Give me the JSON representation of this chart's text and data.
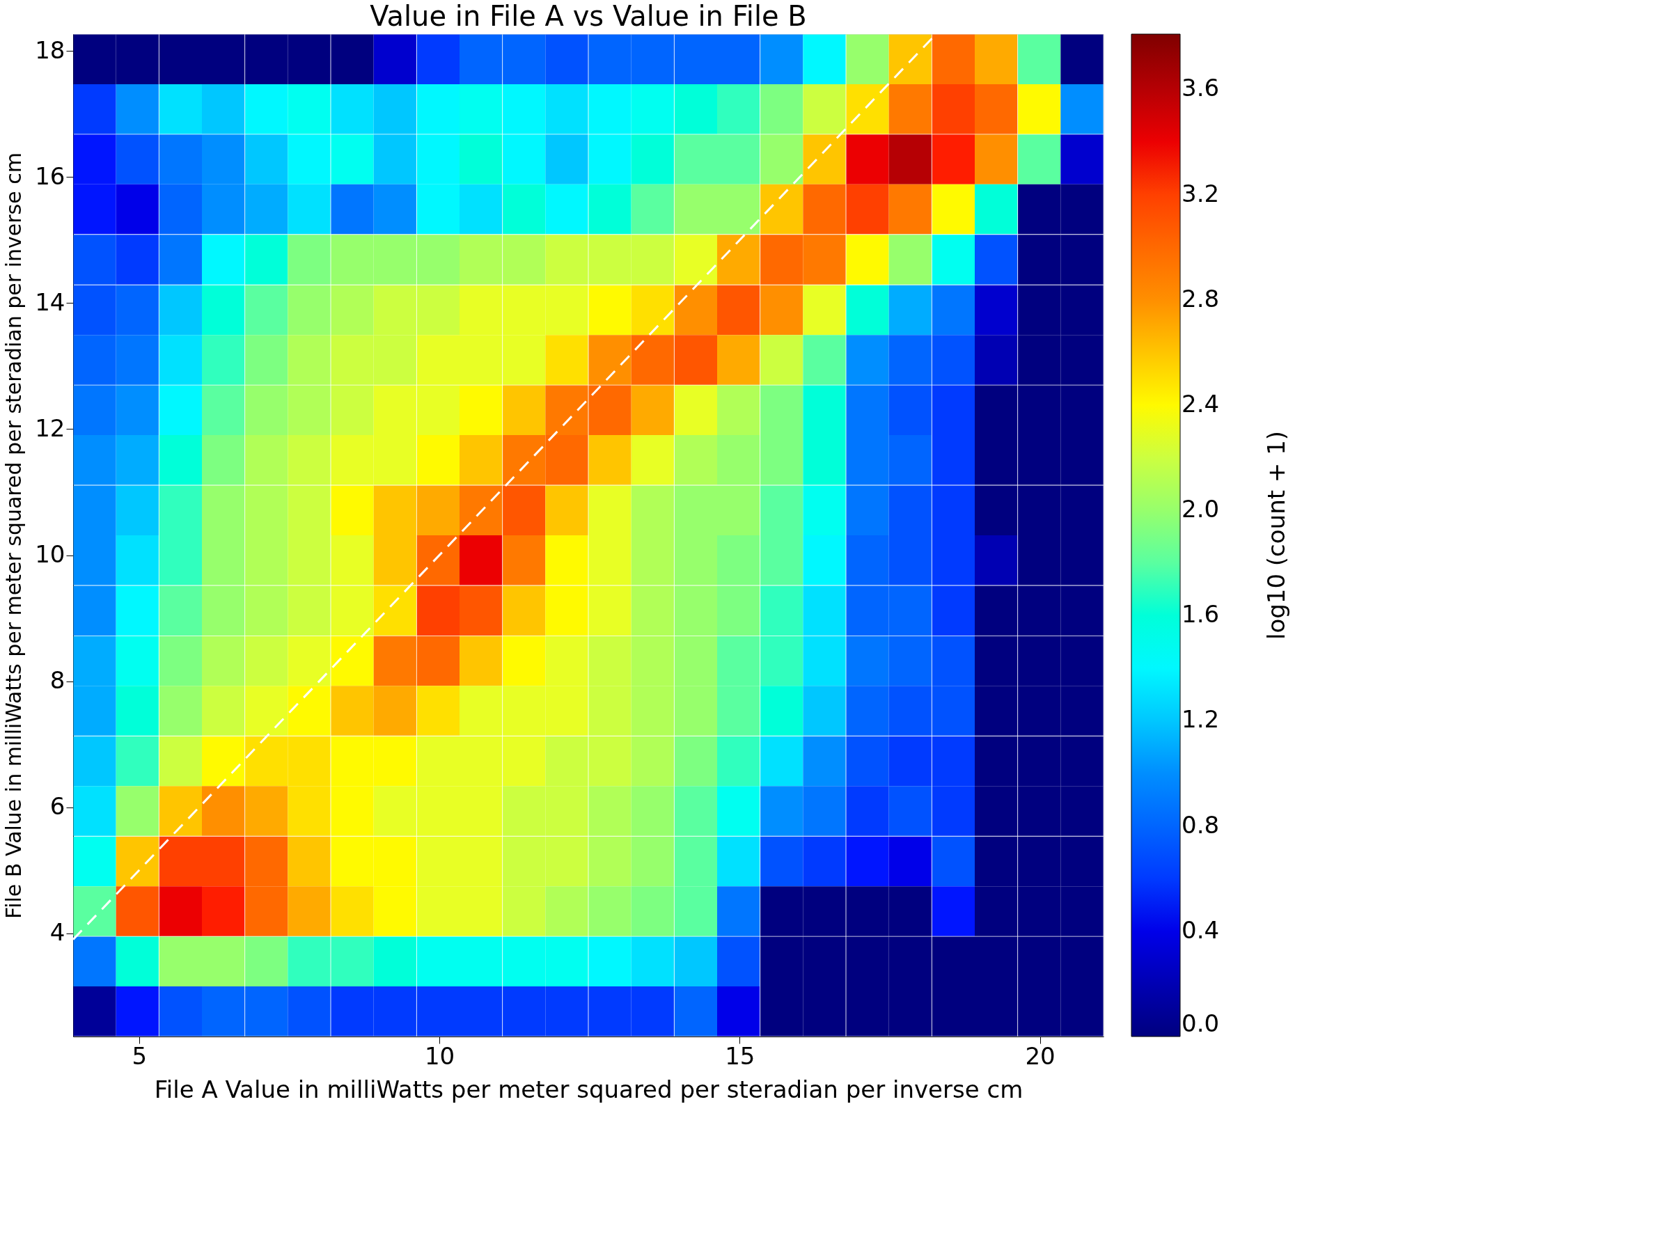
{
  "chart_data": {
    "type": "heatmap",
    "title": "Value in File A vs Value in File B",
    "xlabel": "File A Value in milliWatts per meter squared per steradian per inverse cm",
    "ylabel": "File B Value in milliWatts per meter squared per steradian per inverse cm",
    "clabel": "log10 (count + 1)",
    "xlim": [
      3.9,
      21.06
    ],
    "xticks": [
      5,
      10,
      15,
      20
    ],
    "ylim": [
      2.36,
      18.27
    ],
    "yticks": [
      4,
      6,
      8,
      10,
      12,
      14,
      16,
      18
    ],
    "clim": [
      0,
      3.81
    ],
    "cticks": [
      {
        "value": 0,
        "label": "0.0"
      },
      0.4,
      0.8,
      1.2,
      1.6,
      {
        "value": 2,
        "label": "2.0"
      },
      2.4,
      2.8,
      3.2,
      3.6
    ],
    "grid": false,
    "x": [
      4.26,
      4.97,
      5.69,
      6.4,
      7.12,
      7.83,
      8.55,
      9.26,
      9.98,
      10.69,
      11.41,
      12.12,
      12.84,
      13.55,
      14.27,
      14.98,
      15.7,
      16.41,
      17.13,
      17.84,
      18.56,
      19.27,
      19.99,
      20.7
    ],
    "y": [
      17.87,
      17.08,
      16.28,
      15.49,
      14.69,
      13.89,
      13.1,
      12.3,
      11.51,
      10.71,
      9.92,
      9.12,
      8.32,
      7.53,
      6.73,
      5.94,
      5.14,
      4.35,
      3.55,
      2.76
    ],
    "cells": [
      [
        0,
        0,
        0,
        0,
        0,
        0,
        0,
        0.3,
        0.6,
        0.8,
        0.8,
        0.7,
        0.8,
        0.8,
        0.8,
        0.8,
        1.0,
        1.4,
        2.0,
        2.6,
        3.0,
        2.7,
        1.8,
        0
      ],
      [
        0.6,
        1.0,
        1.3,
        1.2,
        1.4,
        1.5,
        1.3,
        1.2,
        1.4,
        1.5,
        1.4,
        1.3,
        1.4,
        1.5,
        1.6,
        1.7,
        1.9,
        2.2,
        2.5,
        2.9,
        3.2,
        3.0,
        2.4,
        1.0
      ],
      [
        0.5,
        0.7,
        0.9,
        1.0,
        1.2,
        1.4,
        1.5,
        1.2,
        1.4,
        1.6,
        1.4,
        1.2,
        1.4,
        1.6,
        1.8,
        1.8,
        2.0,
        2.6,
        3.4,
        3.6,
        3.3,
        2.8,
        1.8,
        0.3
      ],
      [
        0.5,
        0.4,
        0.8,
        1.0,
        1.1,
        1.3,
        0.9,
        1.0,
        1.4,
        1.3,
        1.6,
        1.4,
        1.6,
        1.8,
        2.0,
        2.0,
        2.6,
        3.0,
        3.2,
        2.9,
        2.4,
        1.6,
        0,
        0
      ],
      [
        0.7,
        0.6,
        0.9,
        1.4,
        1.6,
        1.9,
        2.0,
        2.0,
        2.0,
        2.1,
        2.1,
        2.2,
        2.2,
        2.2,
        2.3,
        2.7,
        3.0,
        2.9,
        2.4,
        2.0,
        1.5,
        0.7,
        0,
        0
      ],
      [
        0.7,
        0.8,
        1.2,
        1.6,
        1.8,
        2.0,
        2.1,
        2.2,
        2.2,
        2.3,
        2.3,
        2.3,
        2.4,
        2.5,
        2.8,
        3.1,
        2.8,
        2.3,
        1.6,
        1.1,
        0.9,
        0.3,
        0,
        0
      ],
      [
        0.8,
        0.9,
        1.3,
        1.7,
        1.9,
        2.1,
        2.2,
        2.2,
        2.3,
        2.3,
        2.3,
        2.5,
        2.8,
        3.0,
        3.1,
        2.7,
        2.2,
        1.8,
        1.0,
        0.8,
        0.7,
        0.2,
        0,
        0
      ],
      [
        0.9,
        1.0,
        1.4,
        1.8,
        2.0,
        2.1,
        2.2,
        2.3,
        2.3,
        2.4,
        2.6,
        2.9,
        3.0,
        2.7,
        2.3,
        2.1,
        1.9,
        1.6,
        0.9,
        0.7,
        0.6,
        0,
        0,
        0
      ],
      [
        1.0,
        1.1,
        1.6,
        1.9,
        2.1,
        2.2,
        2.3,
        2.3,
        2.4,
        2.6,
        2.9,
        3.0,
        2.6,
        2.3,
        2.1,
        2.0,
        1.9,
        1.6,
        0.9,
        0.8,
        0.6,
        0,
        0,
        0
      ],
      [
        1.0,
        1.2,
        1.7,
        2.0,
        2.1,
        2.2,
        2.4,
        2.6,
        2.7,
        2.9,
        3.1,
        2.6,
        2.3,
        2.1,
        2.0,
        2.0,
        1.8,
        1.5,
        0.9,
        0.7,
        0.6,
        0,
        0,
        0
      ],
      [
        1.0,
        1.3,
        1.7,
        2.0,
        2.1,
        2.2,
        2.3,
        2.6,
        3.0,
        3.4,
        2.9,
        2.4,
        2.3,
        2.1,
        2.0,
        1.9,
        1.8,
        1.4,
        0.8,
        0.7,
        0.6,
        0.2,
        0,
        0
      ],
      [
        1.0,
        1.4,
        1.8,
        2.0,
        2.1,
        2.2,
        2.3,
        2.5,
        3.2,
        3.1,
        2.6,
        2.4,
        2.3,
        2.1,
        2.0,
        1.9,
        1.7,
        1.3,
        0.8,
        0.8,
        0.6,
        0,
        0,
        0
      ],
      [
        1.1,
        1.5,
        1.9,
        2.1,
        2.2,
        2.3,
        2.4,
        2.9,
        3.0,
        2.6,
        2.4,
        2.3,
        2.2,
        2.1,
        2.0,
        1.8,
        1.7,
        1.3,
        0.9,
        0.8,
        0.7,
        0,
        0,
        0
      ],
      [
        1.1,
        1.6,
        2.0,
        2.2,
        2.3,
        2.4,
        2.6,
        2.7,
        2.5,
        2.3,
        2.3,
        2.3,
        2.2,
        2.1,
        2.0,
        1.8,
        1.6,
        1.2,
        0.8,
        0.7,
        0.7,
        0,
        0,
        0
      ],
      [
        1.2,
        1.7,
        2.2,
        2.4,
        2.5,
        2.5,
        2.4,
        2.4,
        2.3,
        2.3,
        2.3,
        2.2,
        2.2,
        2.1,
        1.9,
        1.7,
        1.3,
        1.0,
        0.7,
        0.6,
        0.6,
        0,
        0,
        0
      ],
      [
        1.3,
        2.0,
        2.6,
        2.8,
        2.7,
        2.5,
        2.4,
        2.3,
        2.3,
        2.3,
        2.2,
        2.2,
        2.1,
        2.0,
        1.8,
        1.5,
        1.0,
        0.9,
        0.6,
        0.7,
        0.6,
        0,
        0,
        0
      ],
      [
        1.5,
        2.6,
        3.2,
        3.2,
        3.0,
        2.6,
        2.4,
        2.4,
        2.3,
        2.3,
        2.2,
        2.2,
        2.1,
        2.0,
        1.8,
        1.3,
        0.7,
        0.6,
        0.5,
        0.4,
        0.7,
        0,
        0,
        0
      ],
      [
        1.8,
        3.1,
        3.4,
        3.3,
        3.0,
        2.7,
        2.5,
        2.4,
        2.3,
        2.3,
        2.2,
        2.1,
        2.0,
        1.9,
        1.8,
        0.9,
        0,
        0,
        0,
        0,
        0.5,
        0,
        0,
        0
      ],
      [
        0.9,
        1.6,
        2.0,
        2.0,
        1.9,
        1.7,
        1.7,
        1.6,
        1.5,
        1.5,
        1.5,
        1.5,
        1.4,
        1.3,
        1.2,
        0.7,
        0,
        0,
        0,
        0,
        0,
        0,
        0,
        0
      ],
      [
        0.1,
        0.5,
        0.7,
        0.8,
        0.8,
        0.7,
        0.6,
        0.6,
        0.6,
        0.6,
        0.6,
        0.6,
        0.6,
        0.6,
        0.8,
        0.4,
        0,
        0,
        0,
        0,
        0,
        0,
        0,
        0
      ]
    ],
    "series": [
      {
        "type": "line",
        "x": [
          3.9,
          18.27
        ],
        "values": [
          3.9,
          18.27
        ],
        "color": "#ffffff",
        "line_style": "dashed"
      }
    ]
  }
}
